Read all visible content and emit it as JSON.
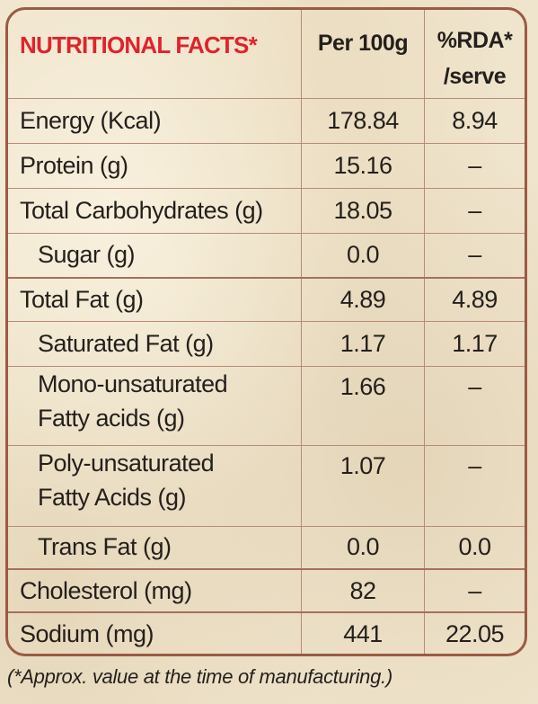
{
  "table": {
    "headers": {
      "title": "NUTRITIONAL FACTS*",
      "per_100g": "Per 100g",
      "rda_line1": "%RDA*",
      "rda_line2": "/serve"
    },
    "rows": [
      {
        "label": "Energy (Kcal)",
        "per100": "178.84",
        "rda": "8.94"
      },
      {
        "label": "Protein (g)",
        "per100": "15.16",
        "rda": "–"
      },
      {
        "label": "Total Carbohydrates (g)",
        "per100": "18.05",
        "rda": "–"
      },
      {
        "label": "Sugar (g)",
        "per100": "0.0",
        "rda": "–"
      },
      {
        "label": "Total Fat (g)",
        "per100": "4.89",
        "rda": "4.89"
      },
      {
        "label": "Saturated Fat (g)",
        "per100": "1.17",
        "rda": "1.17"
      },
      {
        "label_line1": "Mono-unsaturated",
        "label_line2": "Fatty acids (g)",
        "per100": "1.66",
        "rda": "–"
      },
      {
        "label_line1": "Poly-unsaturated",
        "label_line2": "Fatty Acids (g)",
        "per100": "1.07",
        "rda": "–"
      },
      {
        "label": "Trans Fat (g)",
        "per100": "0.0",
        "rda": "0.0"
      },
      {
        "label": "Cholesterol (mg)",
        "per100": "82",
        "rda": "–"
      },
      {
        "label": "Sodium (mg)",
        "per100": "441",
        "rda": "22.05"
      }
    ]
  },
  "footnote": "(*Approx. value at the time of manufacturing.)",
  "colors": {
    "title_red": "#e0232b",
    "border_brown": "#9b5a44",
    "background": "#efe4cc"
  }
}
